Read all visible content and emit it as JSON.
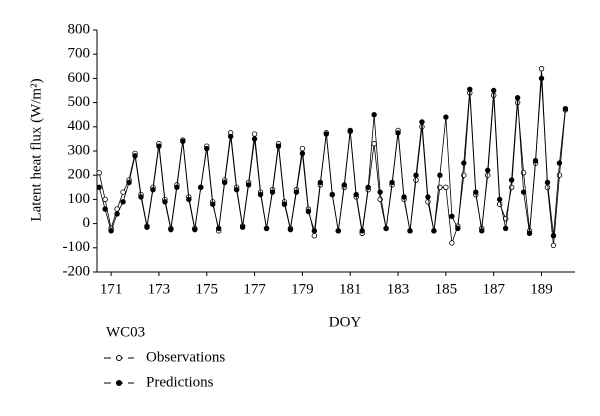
{
  "chart_data": {
    "type": "line",
    "ylabel": "Latent heat flux (W/m²)",
    "xlabel": "DOY",
    "legend_title": "WC03",
    "x": [
      170.5,
      170.75,
      171,
      171.25,
      171.5,
      171.75,
      172,
      172.25,
      172.5,
      172.75,
      173,
      173.25,
      173.5,
      173.75,
      174,
      174.25,
      174.5,
      174.75,
      175,
      175.25,
      175.5,
      175.75,
      176,
      176.25,
      176.5,
      176.75,
      177,
      177.25,
      177.5,
      177.75,
      178,
      178.25,
      178.5,
      178.75,
      179,
      179.25,
      179.5,
      179.75,
      180,
      180.25,
      180.5,
      180.75,
      181,
      181.25,
      181.5,
      181.75,
      182,
      182.25,
      182.5,
      182.75,
      183,
      183.25,
      183.5,
      183.75,
      184,
      184.25,
      184.5,
      184.75,
      185,
      185.25,
      185.5,
      185.75,
      186,
      186.25,
      186.5,
      186.75,
      187,
      187.25,
      187.5,
      187.75,
      188,
      188.25,
      188.5,
      188.75,
      189,
      189.25,
      189.5,
      189.75,
      190
    ],
    "series": [
      {
        "name": "Observations",
        "color": "#000000",
        "marker": "open",
        "values": [
          210,
          100,
          -20,
          60,
          130,
          180,
          290,
          120,
          -10,
          150,
          330,
          100,
          -20,
          160,
          345,
          110,
          -20,
          150,
          320,
          90,
          -30,
          180,
          375,
          150,
          -10,
          170,
          370,
          130,
          -20,
          140,
          330,
          90,
          -20,
          140,
          310,
          60,
          -50,
          160,
          375,
          120,
          -30,
          150,
          380,
          110,
          -40,
          140,
          330,
          100,
          -20,
          160,
          385,
          100,
          -30,
          180,
          400,
          90,
          -30,
          150,
          150,
          -80,
          -10,
          200,
          540,
          120,
          -20,
          200,
          530,
          80,
          20,
          150,
          500,
          210,
          -30,
          250,
          640,
          150,
          -90,
          200,
          470
        ]
      },
      {
        "name": "Predictions",
        "color": "#000000",
        "marker": "filled",
        "values": [
          150,
          60,
          -30,
          40,
          90,
          170,
          280,
          110,
          -15,
          140,
          320,
          90,
          -25,
          150,
          340,
          100,
          -25,
          150,
          310,
          80,
          -20,
          170,
          360,
          140,
          -15,
          160,
          350,
          120,
          -20,
          130,
          320,
          80,
          -25,
          130,
          290,
          50,
          -30,
          170,
          370,
          120,
          -30,
          160,
          385,
          120,
          -30,
          150,
          450,
          130,
          -20,
          170,
          375,
          110,
          -30,
          200,
          420,
          110,
          -30,
          200,
          440,
          30,
          -20,
          250,
          555,
          130,
          -30,
          220,
          550,
          100,
          -20,
          180,
          520,
          130,
          -40,
          260,
          600,
          170,
          -50,
          250,
          475
        ]
      }
    ],
    "xlim": [
      170.41,
      190.4
    ],
    "xticks": [
      171,
      173,
      175,
      177,
      179,
      181,
      183,
      185,
      187,
      189
    ],
    "ylim": [
      -200,
      800
    ],
    "yticks": [
      -200,
      -100,
      0,
      100,
      200,
      300,
      400,
      500,
      600,
      700,
      800
    ]
  }
}
